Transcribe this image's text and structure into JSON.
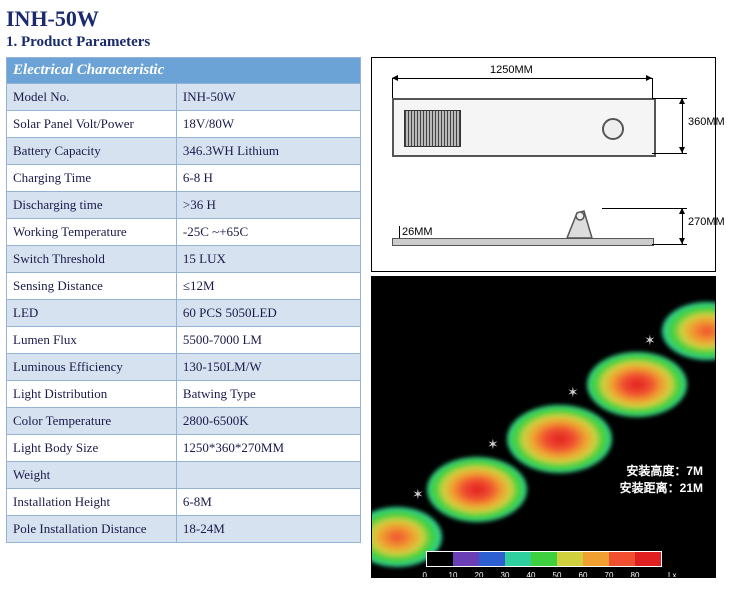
{
  "title": "INH-50W",
  "section_heading": "1. Product Parameters",
  "table": {
    "header": "Electrical Characteristic",
    "rows": [
      {
        "label": "Model No.",
        "value": "INH-50W"
      },
      {
        "label": "Solar Panel Volt/Power",
        "value": "18V/80W"
      },
      {
        "label": "Battery Capacity",
        "value": "346.3WH Lithium"
      },
      {
        "label": "Charging Time",
        "value": "6-8 H"
      },
      {
        "label": "Discharging time",
        "value": ">36 H"
      },
      {
        "label": "Working Temperature",
        "value": "-25C ~+65C"
      },
      {
        "label": "Switch Threshold",
        "value": "15 LUX"
      },
      {
        "label": "Sensing Distance",
        "value": "≤12M"
      },
      {
        "label": "LED",
        "value": "60 PCS 5050LED"
      },
      {
        "label": "Lumen Flux",
        "value": "5500-7000 LM"
      },
      {
        "label": "Luminous Efficiency",
        "value": "130-150LM/W"
      },
      {
        "label": "Light Distribution",
        "value": "Batwing Type"
      },
      {
        "label": "Color Temperature",
        "value": "2800-6500K"
      },
      {
        "label": "Light Body Size",
        "value": "1250*360*270MM"
      },
      {
        "label": "Weight",
        "value": ""
      },
      {
        "label": "Installation Height",
        "value": "6-8M"
      },
      {
        "label": "Pole Installation Distance",
        "value": "18-24M"
      }
    ]
  },
  "drawing": {
    "dim_width": "1250MM",
    "dim_height1": "360MM",
    "dim_height2": "270MM",
    "dim_base": "26MM"
  },
  "lightdist": {
    "text1": "安装高度：7M",
    "text2": "安装距离：21M",
    "scale_colors": [
      "#000000",
      "#6a3fb5",
      "#2e5fd0",
      "#2fd09e",
      "#3fd03f",
      "#d0d03f",
      "#f0a030",
      "#f05030",
      "#e02020"
    ],
    "scale_labels": [
      "0",
      "10",
      "20",
      "30",
      "40",
      "50",
      "60",
      "70",
      "80"
    ],
    "scale_unit": "Lx"
  },
  "colors": {
    "heading": "#1a2a6c",
    "table_header_bg": "#6ba3d6",
    "table_border": "#94b4d6",
    "row_shade": "#d6e2ef"
  }
}
